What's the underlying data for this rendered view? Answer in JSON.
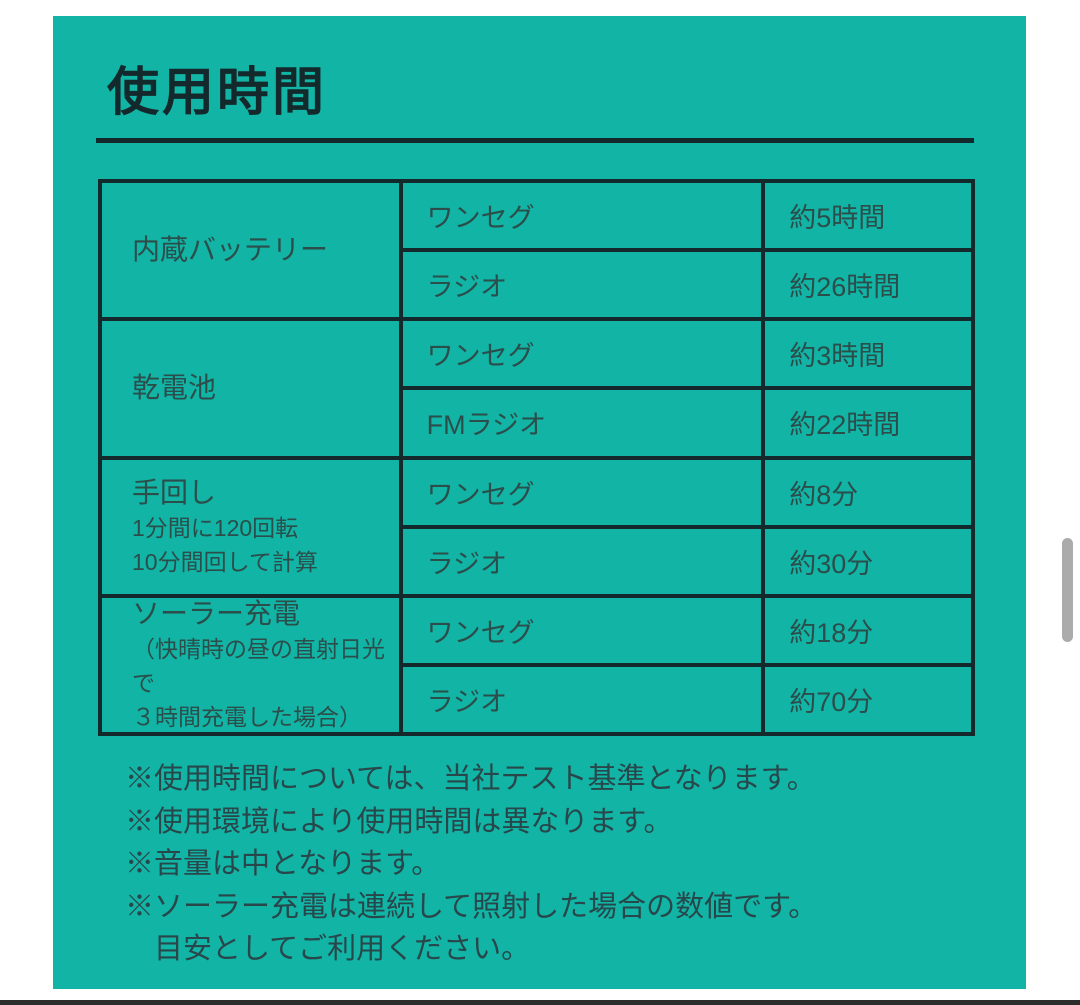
{
  "page": {
    "title": "使用時間"
  },
  "table": {
    "groups": [
      {
        "source": "内蔵バッテリー",
        "rows": [
          {
            "mode": "ワンセグ",
            "duration": "約5時間"
          },
          {
            "mode": "ラジオ",
            "duration": "約26時間"
          }
        ]
      },
      {
        "source": "乾電池",
        "rows": [
          {
            "mode": "ワンセグ",
            "duration": "約3時間"
          },
          {
            "mode": "FMラジオ",
            "duration": "約22時間"
          }
        ]
      },
      {
        "source": "手回し",
        "note_lines": [
          "1分間に120回転",
          "10分間回して計算"
        ],
        "rows": [
          {
            "mode": "ワンセグ",
            "duration": "約8分"
          },
          {
            "mode": "ラジオ",
            "duration": "約30分"
          }
        ]
      },
      {
        "source": "ソーラー充電",
        "note_lines": [
          "（快晴時の昼の直射日光で",
          "３時間充電した場合）"
        ],
        "rows": [
          {
            "mode": "ワンセグ",
            "duration": "約18分"
          },
          {
            "mode": "ラジオ",
            "duration": "約70分"
          }
        ]
      }
    ]
  },
  "notes": [
    "※使用時間については、当社テスト基準となります。",
    "※使用環境により使用時間は異なります。",
    "※音量は中となります。",
    "※ソーラー充電は連続して照射した場合の数値です。",
    "目安としてご利用ください。"
  ],
  "colors": {
    "card_background": "#12b4a6",
    "line_dark": "#14292c",
    "text_dark": "#28474a",
    "scrollbar_gray": "#ababab"
  }
}
